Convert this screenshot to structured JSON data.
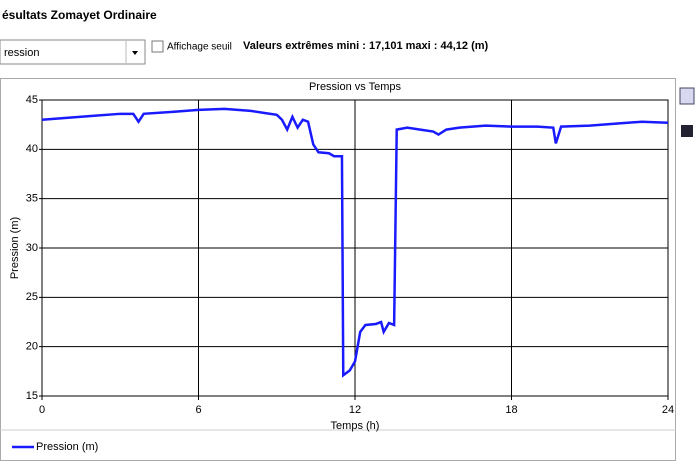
{
  "header": {
    "title": "ésultats Zomayet Ordinaire",
    "dropdown": "ression",
    "checkbox_label": "Affichage seuil",
    "extremes": "Valeurs extrêmes mini : 17,101 maxi : 44,12 (m)"
  },
  "chart_data": {
    "type": "line",
    "title": "Pression vs Temps",
    "x_label": "Temps (h)",
    "y_label": "Pression (m)",
    "x": [
      0,
      1,
      2,
      3,
      3.5,
      3.7,
      3.9,
      5,
      6,
      7,
      7.5,
      8,
      8.5,
      9,
      9.2,
      9.4,
      9.6,
      9.8,
      10,
      10.2,
      10.4,
      10.6,
      11,
      11.2,
      11.5,
      11.55,
      11.8,
      12,
      12.2,
      12.4,
      12.8,
      13,
      13.1,
      13.3,
      13.5,
      13.6,
      14,
      14.5,
      15,
      15.2,
      15.5,
      16,
      17,
      18,
      19,
      19.6,
      19.7,
      19.9,
      21,
      22,
      23,
      24
    ],
    "series": [
      {
        "name": "Pression (m)",
        "color": "#1a1aff",
        "values": [
          43.0,
          43.2,
          43.4,
          43.6,
          43.6,
          42.8,
          43.6,
          43.8,
          44.0,
          44.1,
          44.0,
          43.9,
          43.7,
          43.5,
          43.0,
          42.0,
          43.3,
          42.2,
          43.0,
          42.8,
          40.5,
          39.7,
          39.6,
          39.3,
          39.3,
          17.1,
          17.6,
          18.5,
          21.5,
          22.2,
          22.3,
          22.5,
          21.5,
          22.4,
          22.2,
          42.0,
          42.2,
          42.0,
          41.8,
          41.5,
          42.0,
          42.2,
          42.4,
          42.3,
          42.3,
          42.2,
          40.6,
          42.3,
          42.4,
          42.6,
          42.8,
          42.7
        ]
      }
    ],
    "xlim": [
      0,
      24
    ],
    "xticks": [
      0,
      6,
      12,
      18,
      24
    ],
    "ylim": [
      15,
      45
    ],
    "yticks": [
      15,
      20,
      25,
      30,
      35,
      40,
      45
    ],
    "grid": true
  }
}
